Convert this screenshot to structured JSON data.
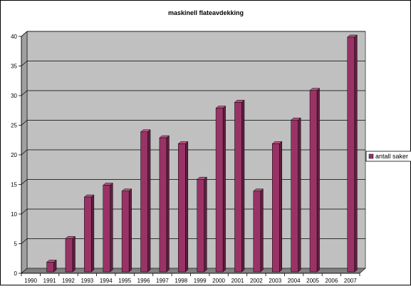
{
  "chart_data": {
    "type": "bar",
    "title": "maskinell flateavdekking",
    "categories": [
      "1990",
      "1991",
      "1992",
      "1993",
      "1994",
      "1995",
      "1996",
      "1997",
      "1998",
      "1999",
      "2000",
      "2001",
      "2002",
      "2003",
      "2004",
      "2005",
      "2006",
      "2007"
    ],
    "series": [
      {
        "name": "antall saker",
        "values": [
          0,
          2,
          6,
          13,
          15,
          14,
          24,
          23,
          22,
          16,
          28,
          29,
          14,
          22,
          26,
          31,
          0,
          40
        ]
      }
    ],
    "ylim": [
      0,
      40
    ],
    "yticks": [
      0,
      5,
      10,
      15,
      20,
      25,
      30,
      35,
      40
    ],
    "grid": true,
    "legend_position": "right",
    "colors": {
      "bar_front": "#993366",
      "bar_side": "#5e1f40",
      "bar_top": "#b85584",
      "plot_back": "#c0c0c0",
      "plot_floor": "#808080",
      "grid": "#000000"
    }
  }
}
